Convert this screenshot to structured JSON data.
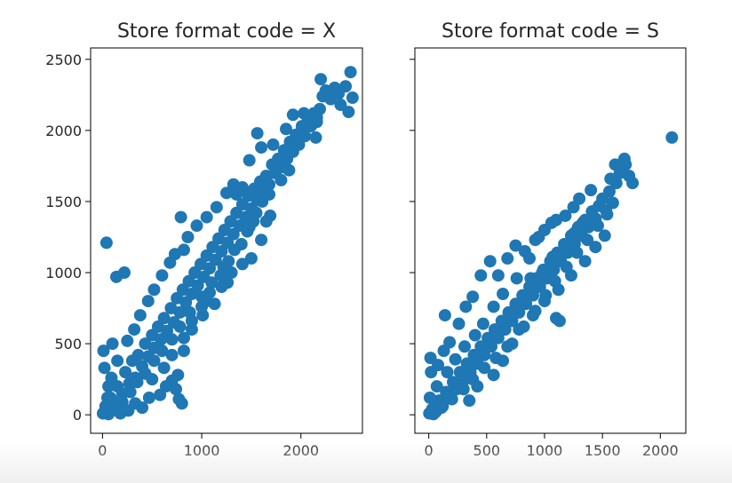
{
  "chart_data": [
    {
      "type": "scatter",
      "title": "Store format code = X",
      "xlim": [
        -120,
        2620
      ],
      "ylim": [
        -130,
        2580
      ],
      "xticks": [
        0,
        1000,
        2000
      ],
      "yticks": [
        0,
        500,
        1000,
        1500,
        2000,
        2500
      ],
      "ytick_labels_visible": true,
      "color": "#1f77b4",
      "points": [
        [
          5,
          10
        ],
        [
          40,
          30
        ],
        [
          80,
          120
        ],
        [
          120,
          60
        ],
        [
          150,
          200
        ],
        [
          200,
          150
        ],
        [
          230,
          300
        ],
        [
          270,
          220
        ],
        [
          300,
          380
        ],
        [
          330,
          260
        ],
        [
          360,
          420
        ],
        [
          400,
          340
        ],
        [
          430,
          500
        ],
        [
          460,
          410
        ],
        [
          500,
          560
        ],
        [
          520,
          470
        ],
        [
          560,
          620
        ],
        [
          590,
          530
        ],
        [
          620,
          680
        ],
        [
          650,
          590
        ],
        [
          690,
          750
        ],
        [
          720,
          650
        ],
        [
          750,
          820
        ],
        [
          780,
          720
        ],
        [
          810,
          880
        ],
        [
          840,
          790
        ],
        [
          870,
          940
        ],
        [
          900,
          850
        ],
        [
          930,
          1000
        ],
        [
          960,
          910
        ],
        [
          990,
          1060
        ],
        [
          1020,
          970
        ],
        [
          1050,
          1120
        ],
        [
          1080,
          1030
        ],
        [
          1110,
          1180
        ],
        [
          1140,
          1090
        ],
        [
          1170,
          1240
        ],
        [
          1200,
          1150
        ],
        [
          1230,
          1300
        ],
        [
          1260,
          1210
        ],
        [
          1290,
          1360
        ],
        [
          1320,
          1270
        ],
        [
          1350,
          1420
        ],
        [
          1380,
          1330
        ],
        [
          1410,
          1480
        ],
        [
          1440,
          1390
        ],
        [
          1470,
          1540
        ],
        [
          1500,
          1450
        ],
        [
          1530,
          1590
        ],
        [
          1560,
          1510
        ],
        [
          1590,
          1640
        ],
        [
          1620,
          1560
        ],
        [
          1650,
          1680
        ],
        [
          1680,
          1620
        ],
        [
          1710,
          1760
        ],
        [
          1740,
          1700
        ],
        [
          1770,
          1800
        ],
        [
          1800,
          1740
        ],
        [
          1830,
          1860
        ],
        [
          1860,
          1800
        ],
        [
          1890,
          1920
        ],
        [
          1920,
          1850
        ],
        [
          1950,
          1970
        ],
        [
          1980,
          1900
        ],
        [
          2010,
          2030
        ],
        [
          2040,
          1960
        ],
        [
          2070,
          2090
        ],
        [
          2100,
          2030
        ],
        [
          2130,
          2120
        ],
        [
          2160,
          2060
        ],
        [
          2190,
          2150
        ],
        [
          2220,
          2240
        ],
        [
          2250,
          2280
        ],
        [
          2200,
          2360
        ],
        [
          2300,
          2220
        ],
        [
          2340,
          2300
        ],
        [
          2380,
          2260
        ],
        [
          2450,
          2310
        ],
        [
          2500,
          2410
        ],
        [
          2520,
          2230
        ],
        [
          2480,
          2130
        ],
        [
          2400,
          2180
        ],
        [
          2160,
          2090
        ],
        [
          1990,
          1950
        ],
        [
          1800,
          1650
        ],
        [
          1680,
          1550
        ],
        [
          1520,
          1360
        ],
        [
          1460,
          1290
        ],
        [
          1330,
          1160
        ],
        [
          1220,
          1040
        ],
        [
          1100,
          930
        ],
        [
          1000,
          830
        ],
        [
          880,
          720
        ],
        [
          780,
          620
        ],
        [
          700,
          530
        ],
        [
          600,
          450
        ],
        [
          520,
          380
        ],
        [
          430,
          290
        ],
        [
          350,
          230
        ],
        [
          280,
          160
        ],
        [
          200,
          90
        ],
        [
          120,
          40
        ],
        [
          60,
          5
        ],
        [
          20,
          15
        ],
        [
          40,
          1210
        ],
        [
          140,
          970
        ],
        [
          100,
          500
        ],
        [
          220,
          1000
        ],
        [
          790,
          1390
        ],
        [
          820,
          1160
        ],
        [
          930,
          1000
        ],
        [
          1050,
          800
        ],
        [
          1200,
          900
        ],
        [
          1300,
          1000
        ],
        [
          1350,
          1550
        ],
        [
          1410,
          1600
        ],
        [
          1480,
          1790
        ],
        [
          1560,
          1980
        ],
        [
          1600,
          1880
        ],
        [
          1720,
          1900
        ],
        [
          1790,
          1800
        ],
        [
          1850,
          2010
        ],
        [
          1920,
          2110
        ],
        [
          2030,
          2120
        ],
        [
          2080,
          2080
        ],
        [
          2150,
          1950
        ],
        [
          1880,
          1720
        ],
        [
          1690,
          1400
        ],
        [
          1650,
          1360
        ],
        [
          1600,
          1230
        ],
        [
          1500,
          1100
        ],
        [
          1410,
          1060
        ],
        [
          1260,
          930
        ],
        [
          1130,
          780
        ],
        [
          1010,
          700
        ],
        [
          900,
          600
        ],
        [
          820,
          450
        ],
        [
          760,
          280
        ],
        [
          800,
          80
        ],
        [
          770,
          110
        ],
        [
          740,
          180
        ],
        [
          700,
          240
        ],
        [
          640,
          200
        ],
        [
          580,
          140
        ],
        [
          470,
          120
        ],
        [
          400,
          50
        ],
        [
          330,
          80
        ],
        [
          260,
          30
        ],
        [
          180,
          10
        ],
        [
          100,
          100
        ],
        [
          60,
          200
        ],
        [
          20,
          330
        ],
        [
          10,
          450
        ],
        [
          50,
          120
        ],
        [
          30,
          60
        ],
        [
          150,
          380
        ],
        [
          90,
          260
        ],
        [
          250,
          520
        ],
        [
          320,
          600
        ],
        [
          380,
          700
        ],
        [
          460,
          800
        ],
        [
          520,
          880
        ],
        [
          600,
          980
        ],
        [
          680,
          1070
        ],
        [
          730,
          1130
        ],
        [
          860,
          1250
        ],
        [
          950,
          1330
        ],
        [
          1050,
          1390
        ],
        [
          1150,
          1460
        ],
        [
          1250,
          1560
        ],
        [
          1320,
          1620
        ],
        [
          500,
          250
        ],
        [
          620,
          330
        ],
        [
          700,
          420
        ],
        [
          820,
          540
        ],
        [
          900,
          660
        ],
        [
          1000,
          760
        ],
        [
          1080,
          860
        ],
        [
          1190,
          980
        ],
        [
          1270,
          1080
        ],
        [
          1400,
          1200
        ],
        [
          1480,
          1320
        ],
        [
          1550,
          1420
        ],
        [
          1610,
          1500
        ]
      ]
    },
    {
      "type": "scatter",
      "title": "Store format code = S",
      "xlim": [
        -120,
        2220
      ],
      "ylim": [
        -130,
        2580
      ],
      "xticks": [
        0,
        500,
        1000,
        1500,
        2000
      ],
      "yticks": [
        0,
        500,
        1000,
        1500,
        2000,
        2500
      ],
      "ytick_labels_visible": false,
      "color": "#1f77b4",
      "points": [
        [
          5,
          10
        ],
        [
          30,
          40
        ],
        [
          60,
          20
        ],
        [
          90,
          100
        ],
        [
          120,
          60
        ],
        [
          150,
          160
        ],
        [
          180,
          120
        ],
        [
          210,
          230
        ],
        [
          240,
          180
        ],
        [
          270,
          300
        ],
        [
          300,
          240
        ],
        [
          330,
          360
        ],
        [
          360,
          300
        ],
        [
          390,
          420
        ],
        [
          420,
          360
        ],
        [
          450,
          480
        ],
        [
          480,
          420
        ],
        [
          510,
          540
        ],
        [
          540,
          480
        ],
        [
          570,
          600
        ],
        [
          600,
          540
        ],
        [
          630,
          660
        ],
        [
          660,
          600
        ],
        [
          690,
          720
        ],
        [
          720,
          660
        ],
        [
          750,
          780
        ],
        [
          780,
          720
        ],
        [
          810,
          840
        ],
        [
          840,
          780
        ],
        [
          870,
          900
        ],
        [
          900,
          840
        ],
        [
          930,
          960
        ],
        [
          960,
          900
        ],
        [
          990,
          1020
        ],
        [
          1020,
          960
        ],
        [
          1050,
          1080
        ],
        [
          1080,
          1020
        ],
        [
          1110,
          1140
        ],
        [
          1140,
          1080
        ],
        [
          1170,
          1200
        ],
        [
          1200,
          1140
        ],
        [
          1230,
          1260
        ],
        [
          1260,
          1200
        ],
        [
          1290,
          1320
        ],
        [
          1320,
          1260
        ],
        [
          1350,
          1370
        ],
        [
          1380,
          1320
        ],
        [
          1410,
          1430
        ],
        [
          1440,
          1380
        ],
        [
          1470,
          1470
        ],
        [
          1500,
          1520
        ],
        [
          1530,
          1440
        ],
        [
          1560,
          1570
        ],
        [
          1590,
          1490
        ],
        [
          1620,
          1630
        ],
        [
          1650,
          1700
        ],
        [
          1700,
          1760
        ],
        [
          1730,
          1680
        ],
        [
          1760,
          1630
        ],
        [
          1610,
          1760
        ],
        [
          1690,
          1800
        ],
        [
          1570,
          1660
        ],
        [
          2100,
          1950
        ],
        [
          1520,
          1260
        ],
        [
          1440,
          1180
        ],
        [
          1350,
          1080
        ],
        [
          1230,
          980
        ],
        [
          1120,
          880
        ],
        [
          1000,
          800
        ],
        [
          1100,
          680
        ],
        [
          1130,
          660
        ],
        [
          900,
          700
        ],
        [
          780,
          600
        ],
        [
          680,
          480
        ],
        [
          580,
          400
        ],
        [
          480,
          330
        ],
        [
          380,
          250
        ],
        [
          300,
          180
        ],
        [
          200,
          110
        ],
        [
          110,
          50
        ],
        [
          40,
          5
        ],
        [
          10,
          120
        ],
        [
          20,
          300
        ],
        [
          15,
          400
        ],
        [
          80,
          350
        ],
        [
          130,
          450
        ],
        [
          180,
          510
        ],
        [
          260,
          640
        ],
        [
          320,
          760
        ],
        [
          140,
          700
        ],
        [
          380,
          830
        ],
        [
          530,
          1080
        ],
        [
          450,
          980
        ],
        [
          750,
          1190
        ],
        [
          600,
          980
        ],
        [
          680,
          1100
        ],
        [
          830,
          1150
        ],
        [
          920,
          1230
        ],
        [
          1000,
          1300
        ],
        [
          1100,
          1370
        ],
        [
          1180,
          1400
        ],
        [
          1250,
          1460
        ],
        [
          1300,
          1520
        ],
        [
          1400,
          1580
        ],
        [
          950,
          1250
        ],
        [
          1060,
          1350
        ],
        [
          870,
          1100
        ],
        [
          760,
          960
        ],
        [
          640,
          850
        ],
        [
          560,
          760
        ],
        [
          470,
          640
        ],
        [
          400,
          560
        ],
        [
          310,
          480
        ],
        [
          230,
          390
        ],
        [
          160,
          300
        ],
        [
          70,
          200
        ],
        [
          350,
          100
        ],
        [
          420,
          200
        ],
        [
          560,
          280
        ],
        [
          640,
          380
        ],
        [
          720,
          500
        ],
        [
          820,
          620
        ],
        [
          920,
          730
        ],
        [
          1010,
          840
        ],
        [
          1090,
          940
        ],
        [
          1190,
          1040
        ],
        [
          1280,
          1140
        ],
        [
          1370,
          1230
        ],
        [
          1460,
          1330
        ],
        [
          1540,
          1410
        ],
        [
          1260,
          1280
        ],
        [
          1330,
          1350
        ],
        [
          1170,
          1170
        ],
        [
          1070,
          1110
        ],
        [
          980,
          1000
        ],
        [
          880,
          960
        ]
      ]
    }
  ]
}
